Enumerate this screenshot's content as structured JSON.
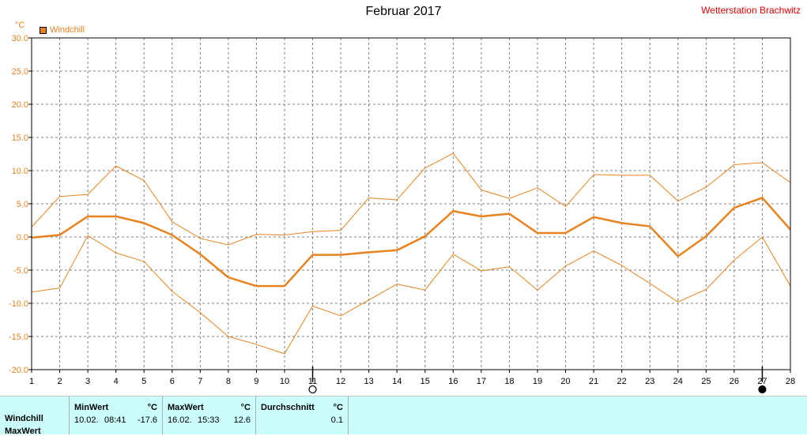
{
  "header": {
    "title": "Februar 2017",
    "station": "Wetterstation Brachwitz",
    "unit": "°C",
    "legend_label": "Windchill"
  },
  "chart_data": {
    "type": "line",
    "title": "Februar 2017",
    "ylabel": "°C",
    "ylim": [
      -20,
      30
    ],
    "xlim": [
      1,
      28
    ],
    "grid": true,
    "legend": "top-left",
    "x": [
      1,
      2,
      3,
      4,
      5,
      6,
      7,
      8,
      9,
      10,
      11,
      12,
      13,
      14,
      15,
      16,
      17,
      18,
      19,
      20,
      21,
      22,
      23,
      24,
      25,
      26,
      27,
      28
    ],
    "y_ticks": [
      "-20.0",
      "-15.0",
      "-10.0",
      "-5.0",
      "0.0",
      "5.0",
      "10.0",
      "15.0",
      "20.0",
      "25.0",
      "30.0"
    ],
    "x_ticks": [
      "1",
      "2",
      "3",
      "4",
      "5",
      "6",
      "7",
      "8",
      "9",
      "10",
      "11",
      "12",
      "13",
      "14",
      "15",
      "16",
      "17",
      "18",
      "19",
      "20",
      "21",
      "22",
      "23",
      "24",
      "25",
      "26",
      "27",
      "28"
    ],
    "series": [
      {
        "name": "Windchill",
        "role": "max",
        "color": "#e8821e",
        "values": [
          1.5,
          6.1,
          6.4,
          10.7,
          8.5,
          2.3,
          -0.2,
          -1.2,
          0.4,
          0.3,
          0.8,
          1.0,
          5.9,
          5.6,
          10.4,
          12.6,
          7.1,
          5.8,
          7.4,
          4.6,
          9.4,
          9.3,
          9.3,
          5.4,
          7.5,
          10.9,
          11.2,
          8.2
        ]
      },
      {
        "name": "Windchill",
        "role": "avg",
        "color": "#e8821e",
        "values": [
          -0.1,
          0.3,
          3.1,
          3.1,
          2.1,
          0.3,
          -2.6,
          -6.1,
          -7.4,
          -7.4,
          -2.7,
          -2.7,
          -2.3,
          -2.0,
          0.1,
          3.9,
          3.1,
          3.5,
          0.6,
          0.6,
          3.0,
          2.1,
          1.6,
          -2.9,
          0.1,
          4.4,
          5.9,
          1.1
        ]
      },
      {
        "name": "Windchill",
        "role": "min",
        "color": "#e8821e",
        "values": [
          -8.3,
          -7.7,
          0.2,
          -2.4,
          -3.7,
          -8.2,
          -11.4,
          -15.0,
          -16.2,
          -17.6,
          -10.4,
          -11.9,
          -9.5,
          -7.1,
          -8.0,
          -2.6,
          -5.1,
          -4.5,
          -8.0,
          -4.4,
          -2.1,
          -4.3,
          -7.0,
          -9.8,
          -7.9,
          -3.5,
          0.0,
          -7.4
        ]
      }
    ],
    "moon_markers": [
      {
        "day": 11,
        "phase": "full-moon"
      },
      {
        "day": 27,
        "phase": "new-moon"
      }
    ]
  },
  "stats": {
    "row_labels": [
      "Windchill",
      "MaxWert"
    ],
    "min": {
      "header": "MinWert",
      "unit": "°C",
      "date": "10.02.",
      "time": "08:41",
      "value": "-17.6"
    },
    "max": {
      "header": "MaxWert",
      "unit": "°C",
      "date": "16.02.",
      "time": "15:33",
      "value": "12.6"
    },
    "avg": {
      "header": "Durchschnitt",
      "unit": "°C",
      "value": "0.1"
    }
  }
}
